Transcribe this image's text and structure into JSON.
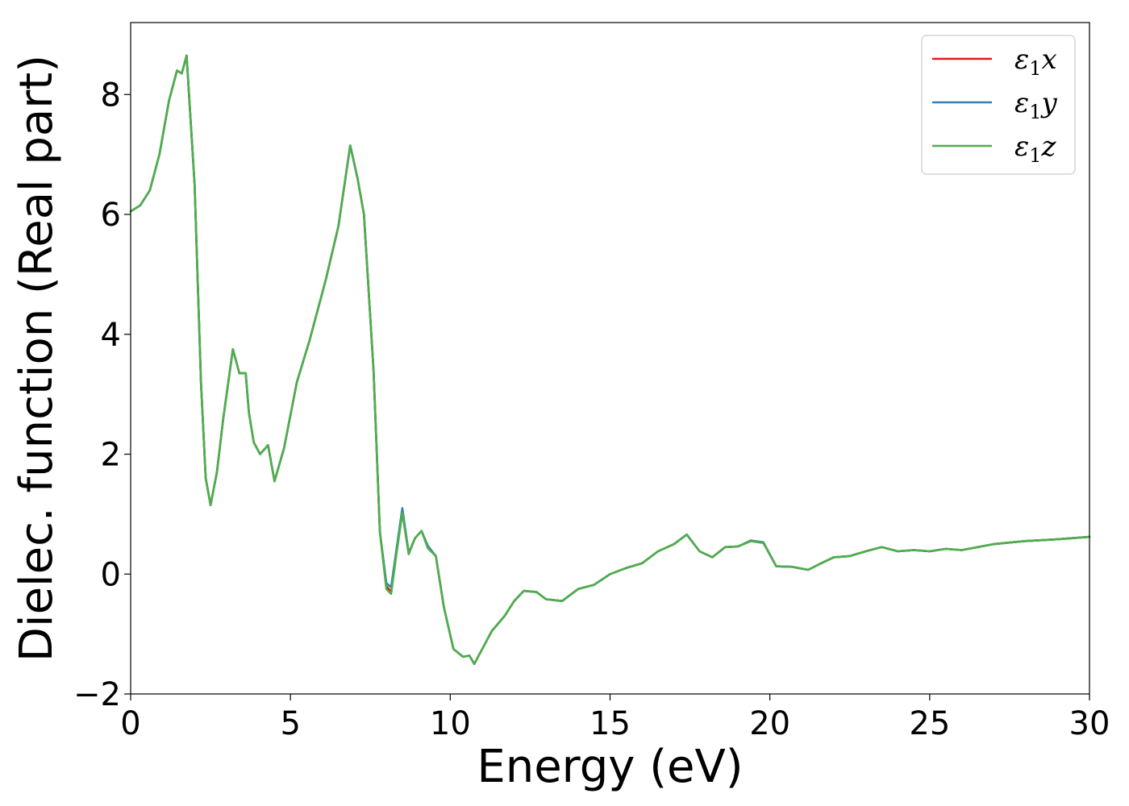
{
  "chart_data": {
    "type": "line",
    "xlabel": "Energy (eV)",
    "ylabel": "Dielec. function (Real part)",
    "xlim": [
      0,
      30
    ],
    "ylim": [
      -2,
      9.2
    ],
    "xticks": [
      0,
      5,
      10,
      15,
      20,
      25,
      30
    ],
    "xtick_labels": [
      "0",
      "5",
      "10",
      "15",
      "20",
      "25",
      "30"
    ],
    "yticks": [
      -2,
      0,
      2,
      4,
      6,
      8
    ],
    "ytick_labels": [
      "−2",
      "0",
      "2",
      "4",
      "6",
      "8"
    ],
    "grid": false,
    "legend_position": "top-right",
    "x": [
      0,
      0.3,
      0.6,
      0.9,
      1.2,
      1.45,
      1.6,
      1.75,
      2.0,
      2.2,
      2.35,
      2.5,
      2.7,
      2.9,
      3.2,
      3.4,
      3.6,
      3.7,
      3.85,
      4.05,
      4.3,
      4.5,
      4.8,
      5.2,
      5.6,
      6.1,
      6.5,
      6.87,
      7.1,
      7.3,
      7.6,
      7.8,
      8.0,
      8.15,
      8.3,
      8.5,
      8.7,
      8.9,
      9.1,
      9.3,
      9.55,
      9.8,
      10.1,
      10.4,
      10.6,
      10.75,
      11.0,
      11.3,
      11.7,
      12.0,
      12.3,
      12.7,
      13.0,
      13.5,
      14.0,
      14.5,
      15.0,
      15.5,
      16.0,
      16.5,
      17.0,
      17.4,
      17.8,
      18.2,
      18.6,
      19.0,
      19.4,
      19.8,
      20.2,
      20.7,
      21.2,
      21.6,
      22.0,
      22.5,
      23.0,
      23.5,
      24.0,
      24.5,
      25.0,
      25.5,
      26.0,
      27.0,
      28.0,
      29.0,
      30.0
    ],
    "series": [
      {
        "name": "ε1x",
        "color": "#e41a1c",
        "y": [
          6.05,
          6.15,
          6.4,
          7.0,
          7.9,
          8.4,
          8.35,
          8.65,
          6.5,
          3.2,
          1.6,
          1.15,
          1.7,
          2.6,
          3.75,
          3.35,
          3.35,
          2.7,
          2.2,
          2.0,
          2.15,
          1.55,
          2.1,
          3.2,
          3.9,
          4.9,
          5.8,
          7.15,
          6.6,
          6.0,
          3.4,
          0.7,
          -0.2,
          -0.3,
          0.3,
          1.05,
          0.35,
          0.6,
          0.72,
          0.45,
          0.3,
          -0.55,
          -1.25,
          -1.38,
          -1.36,
          -1.5,
          -1.25,
          -0.95,
          -0.7,
          -0.45,
          -0.28,
          -0.3,
          -0.42,
          -0.45,
          -0.25,
          -0.18,
          0.0,
          0.1,
          0.18,
          0.38,
          0.5,
          0.66,
          0.38,
          0.28,
          0.45,
          0.46,
          0.55,
          0.52,
          0.13,
          0.12,
          0.07,
          0.18,
          0.28,
          0.3,
          0.38,
          0.45,
          0.38,
          0.4,
          0.38,
          0.42,
          0.4,
          0.5,
          0.55,
          0.58,
          0.62
        ]
      },
      {
        "name": "ε1y",
        "color": "#377eb8",
        "y": [
          6.05,
          6.15,
          6.4,
          7.0,
          7.9,
          8.4,
          8.35,
          8.65,
          6.5,
          3.2,
          1.6,
          1.15,
          1.7,
          2.6,
          3.75,
          3.35,
          3.35,
          2.7,
          2.2,
          2.0,
          2.15,
          1.55,
          2.1,
          3.2,
          3.9,
          4.9,
          5.8,
          7.15,
          6.6,
          6.0,
          3.4,
          0.7,
          -0.15,
          -0.22,
          0.35,
          1.1,
          0.35,
          0.6,
          0.72,
          0.47,
          0.3,
          -0.55,
          -1.25,
          -1.38,
          -1.36,
          -1.5,
          -1.25,
          -0.95,
          -0.7,
          -0.45,
          -0.28,
          -0.3,
          -0.42,
          -0.45,
          -0.25,
          -0.18,
          0.0,
          0.1,
          0.18,
          0.38,
          0.5,
          0.66,
          0.38,
          0.28,
          0.45,
          0.46,
          0.56,
          0.53,
          0.13,
          0.12,
          0.07,
          0.18,
          0.28,
          0.3,
          0.38,
          0.45,
          0.38,
          0.4,
          0.38,
          0.42,
          0.4,
          0.5,
          0.55,
          0.58,
          0.62
        ]
      },
      {
        "name": "ε1z",
        "color": "#4daf4a",
        "y": [
          6.05,
          6.15,
          6.4,
          7.0,
          7.9,
          8.4,
          8.35,
          8.65,
          6.5,
          3.2,
          1.6,
          1.15,
          1.7,
          2.6,
          3.75,
          3.35,
          3.35,
          2.7,
          2.2,
          2.0,
          2.15,
          1.55,
          2.1,
          3.2,
          3.9,
          4.9,
          5.8,
          7.15,
          6.6,
          6.0,
          3.4,
          0.7,
          -0.25,
          -0.33,
          0.28,
          1.02,
          0.33,
          0.6,
          0.72,
          0.43,
          0.3,
          -0.55,
          -1.25,
          -1.38,
          -1.36,
          -1.5,
          -1.25,
          -0.95,
          -0.7,
          -0.45,
          -0.28,
          -0.3,
          -0.42,
          -0.45,
          -0.25,
          -0.18,
          0.0,
          0.1,
          0.18,
          0.38,
          0.5,
          0.66,
          0.38,
          0.28,
          0.45,
          0.46,
          0.55,
          0.52,
          0.13,
          0.12,
          0.07,
          0.18,
          0.28,
          0.3,
          0.38,
          0.45,
          0.38,
          0.4,
          0.38,
          0.42,
          0.4,
          0.5,
          0.55,
          0.58,
          0.62
        ]
      }
    ],
    "legend": [
      {
        "symbol": "ε",
        "sub": "1",
        "var": "x",
        "color": "#e41a1c"
      },
      {
        "symbol": "ε",
        "sub": "1",
        "var": "y",
        "color": "#377eb8"
      },
      {
        "symbol": "ε",
        "sub": "1",
        "var": "z",
        "color": "#4daf4a"
      }
    ]
  }
}
